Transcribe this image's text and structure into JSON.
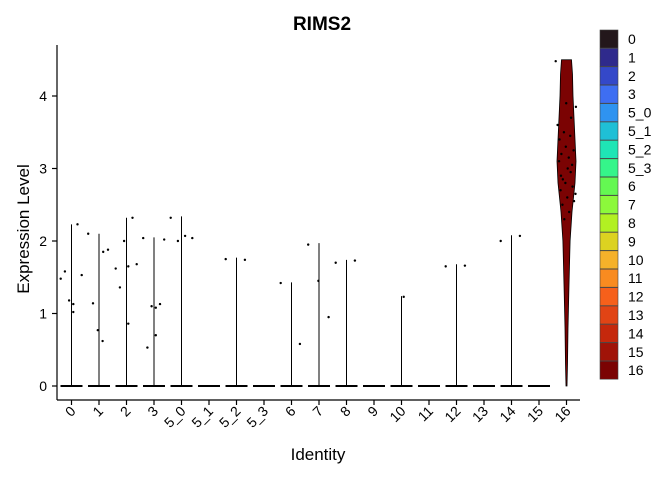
{
  "chart_data": {
    "type": "violin",
    "title": "RIMS2",
    "xlabel": "Identity",
    "ylabel": "Expression Level",
    "ylim": [
      -0.2,
      4.6
    ],
    "yticks": [
      0,
      1,
      2,
      3,
      4
    ],
    "legend_position": "right",
    "categories": [
      "0",
      "1",
      "2",
      "3",
      "5_0",
      "5_1",
      "5_2",
      "5_3",
      "6",
      "7",
      "8",
      "9",
      "10",
      "11",
      "12",
      "13",
      "14",
      "15",
      "16"
    ],
    "colors": [
      "#23171b",
      "#2f2a8c",
      "#3448c9",
      "#3e6ef2",
      "#2f93f0",
      "#1fbfd6",
      "#1fe5b5",
      "#35f58a",
      "#64f852",
      "#8cf93b",
      "#b2f022",
      "#dcd221",
      "#f5b12a",
      "#f98b20",
      "#f6601b",
      "#e14415",
      "#c5280c",
      "#a01308",
      "#7b0303"
    ],
    "series": [
      {
        "category": "0",
        "max": 2.23,
        "points": [
          1.48,
          1.58,
          1.18,
          1.13,
          1.02,
          2.23,
          1.53
        ]
      },
      {
        "category": "1",
        "max": 2.1,
        "points": [
          2.1,
          1.14,
          0.77,
          0.62,
          1.85,
          1.88
        ]
      },
      {
        "category": "2",
        "max": 2.32,
        "points": [
          1.62,
          1.36,
          2.0,
          0.86,
          1.65,
          2.32,
          1.68
        ]
      },
      {
        "category": "3",
        "max": 2.05,
        "points": [
          2.04,
          0.53,
          1.1,
          1.08,
          0.7,
          1.13,
          2.02
        ]
      },
      {
        "category": "5_0",
        "max": 2.34,
        "points": [
          2.32,
          2.0,
          2.07,
          2.04
        ]
      },
      {
        "category": "5_1",
        "max": 0,
        "points": []
      },
      {
        "category": "5_2",
        "max": 1.77,
        "points": [
          1.75,
          1.74
        ]
      },
      {
        "category": "5_3",
        "max": 0,
        "points": []
      },
      {
        "category": "6",
        "max": 1.43,
        "points": [
          1.42,
          0.58
        ]
      },
      {
        "category": "7",
        "max": 1.97,
        "points": [
          1.95,
          1.45,
          0.95
        ]
      },
      {
        "category": "8",
        "max": 1.74,
        "points": [
          1.7,
          1.73
        ]
      },
      {
        "category": "9",
        "max": 0,
        "points": []
      },
      {
        "category": "10",
        "max": 1.24,
        "points": [
          1.23
        ]
      },
      {
        "category": "11",
        "max": 0,
        "points": []
      },
      {
        "category": "12",
        "max": 1.68,
        "points": [
          1.65,
          1.66
        ]
      },
      {
        "category": "13",
        "max": 0,
        "points": []
      },
      {
        "category": "14",
        "max": 2.08,
        "points": [
          2.0,
          2.07
        ]
      },
      {
        "category": "15",
        "max": 0,
        "points": []
      },
      {
        "category": "16",
        "max": 4.5,
        "points": [
          4.48,
          3.6,
          3.4,
          3.2,
          3.1,
          2.9,
          2.85,
          2.7,
          2.5,
          2.3,
          3.9,
          3.5,
          3.3,
          3.0,
          2.8,
          2.6,
          2.4,
          3.7,
          3.15,
          2.95,
          2.75,
          3.45,
          3.05,
          2.55,
          3.85,
          3.25,
          2.65
        ]
      }
    ]
  }
}
